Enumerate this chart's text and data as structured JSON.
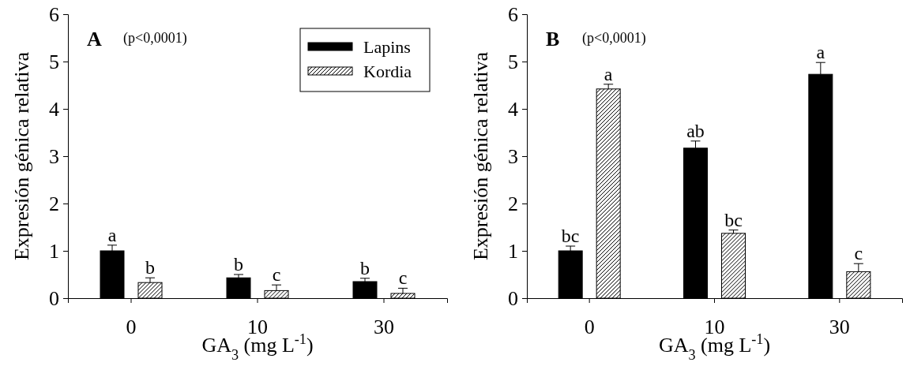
{
  "chart_data": [
    {
      "type": "bar",
      "title": "A",
      "subtitle": "(p<0,0001)",
      "xlabel": "GA$_{3}$ (mg L$^{-1}$)",
      "ylabel": "Expresión génica relativa",
      "categories": [
        "0",
        "10",
        "30"
      ],
      "ylim": [
        0,
        6
      ],
      "yticks": [
        0,
        1,
        2,
        3,
        4,
        5,
        6
      ],
      "legend": "top right",
      "series": [
        {
          "name": "Lapins",
          "color": "#000000",
          "values": [
            1.0,
            0.43,
            0.35
          ],
          "errors": [
            0.12,
            0.07,
            0.07
          ],
          "value_labels": [
            "a",
            "b",
            "b"
          ]
        },
        {
          "name": "Kordia",
          "color": "#ffffff",
          "values": [
            0.33,
            0.16,
            0.1
          ],
          "errors": [
            0.1,
            0.12,
            0.11
          ],
          "value_labels": [
            "b",
            "c",
            "c"
          ]
        }
      ]
    },
    {
      "type": "bar",
      "title": "B",
      "subtitle": "(p<0,0001)",
      "xlabel": "GA$_{3}$ (mg L$^{-1}$)",
      "ylabel": "Expresión génica relativa",
      "categories": [
        "0",
        "10",
        "30"
      ],
      "ylim": [
        0,
        6
      ],
      "yticks": [
        0,
        1,
        2,
        3,
        4,
        5,
        6
      ],
      "series": [
        {
          "color": "#000000",
          "values": [
            1.0,
            3.17,
            4.73
          ],
          "errors": [
            0.1,
            0.15,
            0.25
          ],
          "value_labels": [
            "bc",
            "ab",
            "a"
          ]
        },
        {
          "color": "#ffffff",
          "values": [
            4.42,
            1.37,
            0.56
          ],
          "errors": [
            0.1,
            0.07,
            0.17
          ],
          "value_labels": [
            "a",
            "bc",
            "c"
          ]
        }
      ]
    }
  ]
}
